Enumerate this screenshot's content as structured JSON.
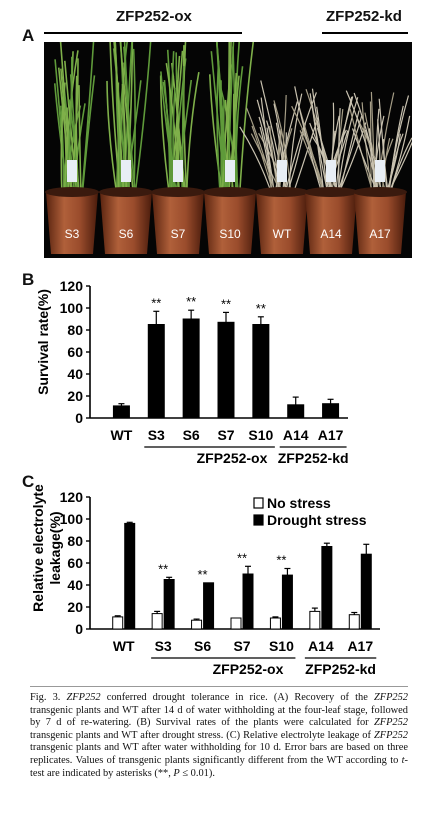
{
  "panel_a": {
    "letter": "A",
    "group_ox": "ZFP252-ox",
    "group_kd": "ZFP252-kd",
    "pot_labels": [
      "S3",
      "S6",
      "S7",
      "S10",
      "WT",
      "A14",
      "A17"
    ]
  },
  "chart_data": [
    {
      "type": "bar",
      "panel": "B",
      "categories": [
        "WT",
        "S3",
        "S6",
        "S7",
        "S10",
        "A14",
        "A17"
      ],
      "values": [
        11,
        85,
        90,
        87,
        85,
        12,
        13
      ],
      "errors": [
        2,
        12,
        8,
        9,
        7,
        7,
        4
      ],
      "significance": [
        "",
        "**",
        "**",
        "**",
        "**",
        "",
        ""
      ],
      "ylabel": "Survival rate(%)",
      "ylim": [
        0,
        120
      ],
      "yticks": [
        0,
        20,
        40,
        60,
        80,
        100,
        120
      ],
      "group_labels": [
        "ZFP252-ox",
        "ZFP252-kd"
      ],
      "bar_color": "#000000"
    },
    {
      "type": "bar",
      "panel": "C",
      "categories": [
        "WT",
        "S3",
        "S6",
        "S7",
        "S10",
        "A14",
        "A17"
      ],
      "series": [
        {
          "name": "No stress",
          "values": [
            11,
            14,
            8,
            10,
            10,
            16,
            13
          ],
          "errors": [
            1,
            2,
            1,
            0,
            1,
            3,
            2
          ],
          "color": "#ffffff"
        },
        {
          "name": "Drought stress",
          "values": [
            96,
            45,
            42,
            50,
            49,
            75,
            68
          ],
          "errors": [
            1,
            2,
            0,
            7,
            6,
            3,
            9
          ],
          "color": "#000000"
        }
      ],
      "significance": [
        "",
        "**",
        "**",
        "**",
        "**",
        "",
        ""
      ],
      "ylabel": "Relative electrolyte leakage(%)",
      "ylabel_lines": [
        "Relative electrolyte",
        "leakage(%)"
      ],
      "ylim": [
        0,
        120
      ],
      "yticks": [
        0,
        20,
        40,
        60,
        80,
        100,
        120
      ],
      "legend": "top-right",
      "group_labels": [
        "ZFP252-ox",
        "ZFP252-kd"
      ]
    }
  ],
  "caption": {
    "fig": "Fig. 3.",
    "gene": "ZFP252",
    "t1": " conferred drought tolerance in rice. (A) Recovery of the ",
    "t2": " transgenic plants and WT after 14 d of water withholding at the four-leaf stage, followed by 7 d of re-watering. (B) Survival rates of the plants were calculated for ",
    "t3": " transgenic plants and WT after drought stress. (C) Relative electrolyte leakage of ",
    "t4": " transgenic plants and WT after water withholding for 10 d. Error bars are based on three replicates. Values of transgenic plants significantly different from the WT according to ",
    "t_italic": "t",
    "t5": "-test are indicated by asterisks (",
    "stars": "**",
    "t6": ", ",
    "p": "P",
    "t7": " ≤ 0.01)."
  }
}
